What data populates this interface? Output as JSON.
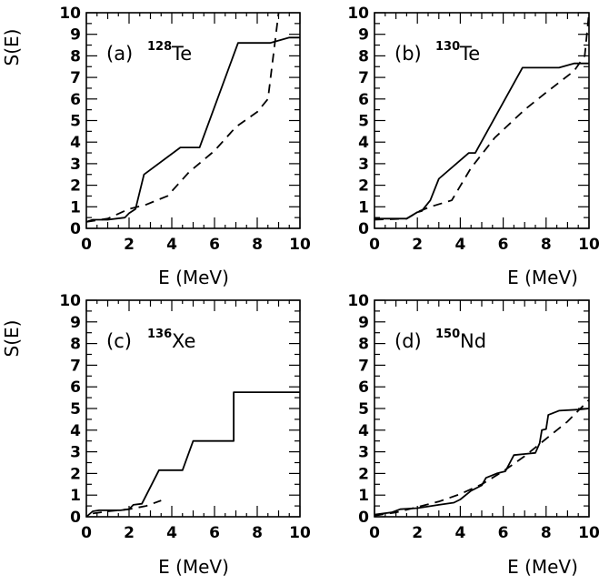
{
  "chart_data": [
    {
      "type": "line",
      "panel": "a",
      "label_letter": "(a)",
      "label_mass": "128",
      "label_element": "Te",
      "xlabel": "E (MeV)",
      "ylabel": "S(E)",
      "xlim": [
        0,
        10
      ],
      "ylim": [
        0,
        10
      ],
      "x_ticks": [
        "0",
        "2",
        "4",
        "6",
        "8",
        "10"
      ],
      "y_ticks": [
        "0",
        "1",
        "2",
        "3",
        "4",
        "5",
        "6",
        "7",
        "8",
        "9",
        "10"
      ],
      "series": [
        {
          "style": "solid",
          "x": [
            0,
            0.3,
            1.0,
            1.8,
            2.0,
            2.3,
            2.7,
            4.4,
            5.3,
            7.1,
            8.6,
            9.5,
            10
          ],
          "y": [
            0.3,
            0.4,
            0.4,
            0.5,
            0.7,
            0.9,
            2.5,
            3.75,
            3.75,
            8.6,
            8.6,
            8.85,
            8.85
          ]
        },
        {
          "style": "dashed",
          "x": [
            0,
            1.0,
            2.0,
            2.8,
            3.8,
            4.8,
            6.0,
            7.0,
            8.0,
            8.5,
            9.0
          ],
          "y": [
            0.3,
            0.45,
            0.9,
            1.1,
            1.5,
            2.6,
            3.6,
            4.7,
            5.4,
            6.0,
            10
          ]
        }
      ]
    },
    {
      "type": "line",
      "panel": "b",
      "label_letter": "(b)",
      "label_mass": "130",
      "label_element": "Te",
      "xlabel": "E (MeV)",
      "ylabel": "",
      "xlim": [
        0,
        10
      ],
      "ylim": [
        0,
        10
      ],
      "x_ticks": [
        "0",
        "2",
        "4",
        "6",
        "8",
        "10"
      ],
      "y_ticks": [
        "0",
        "1",
        "2",
        "3",
        "4",
        "5",
        "6",
        "7",
        "8",
        "9",
        "10"
      ],
      "series": [
        {
          "style": "solid",
          "x": [
            0,
            1.5,
            2.0,
            2.2,
            2.6,
            3.0,
            4.4,
            4.7,
            6.9,
            8.6,
            9.3,
            10
          ],
          "y": [
            0.45,
            0.45,
            0.75,
            0.8,
            1.3,
            2.3,
            3.5,
            3.5,
            7.45,
            7.45,
            7.65,
            7.65
          ]
        },
        {
          "style": "dashed",
          "x": [
            0,
            1.5,
            2.1,
            2.6,
            3.6,
            4.5,
            5.6,
            7.0,
            8.0,
            9.3,
            9.8,
            10
          ],
          "y": [
            0.4,
            0.45,
            0.8,
            1.0,
            1.3,
            2.8,
            4.2,
            5.5,
            6.3,
            7.3,
            8.0,
            10
          ]
        }
      ]
    },
    {
      "type": "line",
      "panel": "c",
      "label_letter": "(c)",
      "label_mass": "136",
      "label_element": "Xe",
      "xlabel": "E (MeV)",
      "ylabel": "S(E)",
      "xlim": [
        0,
        10
      ],
      "ylim": [
        0,
        10
      ],
      "x_ticks": [
        "0",
        "2",
        "4",
        "6",
        "8",
        "10"
      ],
      "y_ticks": [
        "0",
        "1",
        "2",
        "3",
        "4",
        "5",
        "6",
        "7",
        "8",
        "9",
        "10"
      ],
      "series": [
        {
          "style": "solid",
          "x": [
            0,
            0.3,
            0.6,
            1.6,
            2.0,
            2.2,
            2.6,
            3.4,
            4.5,
            5.0,
            6.9,
            6.9,
            10
          ],
          "y": [
            0,
            0.25,
            0.3,
            0.3,
            0.35,
            0.55,
            0.6,
            2.15,
            2.15,
            3.5,
            3.5,
            5.75,
            5.75
          ]
        },
        {
          "style": "dashed",
          "x": [
            0.3,
            1.0,
            2.0,
            2.8,
            3.5
          ],
          "y": [
            0.15,
            0.25,
            0.35,
            0.5,
            0.75
          ]
        }
      ]
    },
    {
      "type": "line",
      "panel": "d",
      "label_letter": "(d)",
      "label_mass": "150",
      "label_element": "Nd",
      "xlabel": "E (MeV)",
      "ylabel": "",
      "xlim": [
        0,
        10
      ],
      "ylim": [
        0,
        10
      ],
      "x_ticks": [
        "0",
        "2",
        "4",
        "6",
        "8",
        "10"
      ],
      "y_ticks": [
        "0",
        "1",
        "2",
        "3",
        "4",
        "5",
        "6",
        "7",
        "8",
        "9",
        "10"
      ],
      "series": [
        {
          "style": "solid",
          "x": [
            0,
            0.8,
            1.2,
            2.0,
            3.0,
            3.7,
            4.0,
            4.5,
            5.0,
            5.2,
            5.7,
            6.1,
            6.5,
            7.0,
            7.5,
            7.7,
            7.8,
            8.0,
            8.1,
            8.6,
            9.5,
            10
          ],
          "y": [
            0.1,
            0.2,
            0.35,
            0.4,
            0.55,
            0.65,
            0.8,
            1.2,
            1.45,
            1.8,
            2.0,
            2.1,
            2.85,
            2.9,
            2.95,
            3.4,
            4.0,
            4.05,
            4.7,
            4.9,
            4.95,
            5.0
          ]
        },
        {
          "style": "dashed",
          "x": [
            0,
            1.0,
            2.0,
            3.0,
            4.0,
            5.0,
            6.0,
            7.0,
            8.0,
            9.0,
            10
          ],
          "y": [
            0.05,
            0.2,
            0.45,
            0.7,
            1.05,
            1.5,
            2.1,
            2.8,
            3.6,
            4.4,
            5.4
          ]
        }
      ]
    }
  ]
}
